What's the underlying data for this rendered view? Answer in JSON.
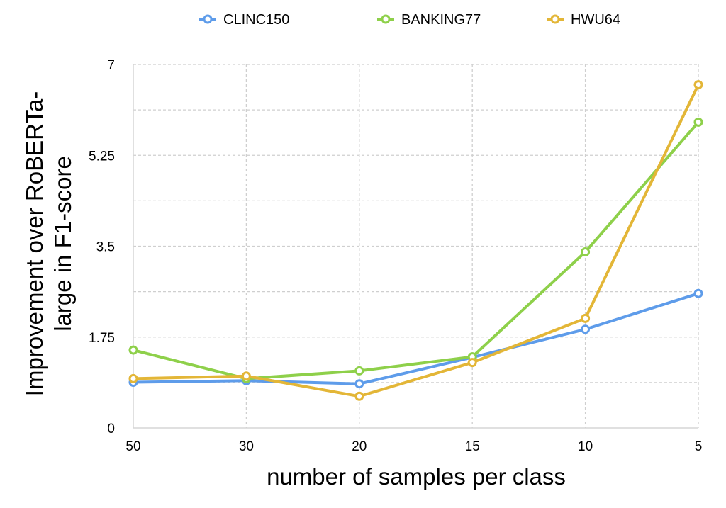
{
  "chart_data": {
    "type": "line",
    "categories": [
      "50",
      "30",
      "20",
      "15",
      "10",
      "5"
    ],
    "series": [
      {
        "name": "CLINC150",
        "color": "#5e9cea",
        "values": [
          0.88,
          0.91,
          0.85,
          1.36,
          1.9,
          2.59
        ]
      },
      {
        "name": "BANKING77",
        "color": "#8ed04a",
        "values": [
          1.5,
          0.95,
          1.1,
          1.37,
          3.39,
          5.89
        ]
      },
      {
        "name": "HWU64",
        "color": "#e3b637",
        "values": [
          0.95,
          1.0,
          0.61,
          1.26,
          2.11,
          6.61
        ]
      }
    ],
    "title": "",
    "xlabel": "number of samples per class",
    "ylabel": "Improvement over RoBERTa-large in F1-score",
    "ylabel_lines": [
      "Improvement over RoBERTa-",
      "large in F1-score"
    ],
    "yticks": [
      0,
      1.75,
      3.5,
      5.25,
      7
    ],
    "ytick_labels": [
      "0",
      "1.75",
      "3.5",
      "5.25",
      "7"
    ],
    "ylim": [
      0,
      7
    ],
    "grid": true,
    "legend_position": "top-center"
  }
}
